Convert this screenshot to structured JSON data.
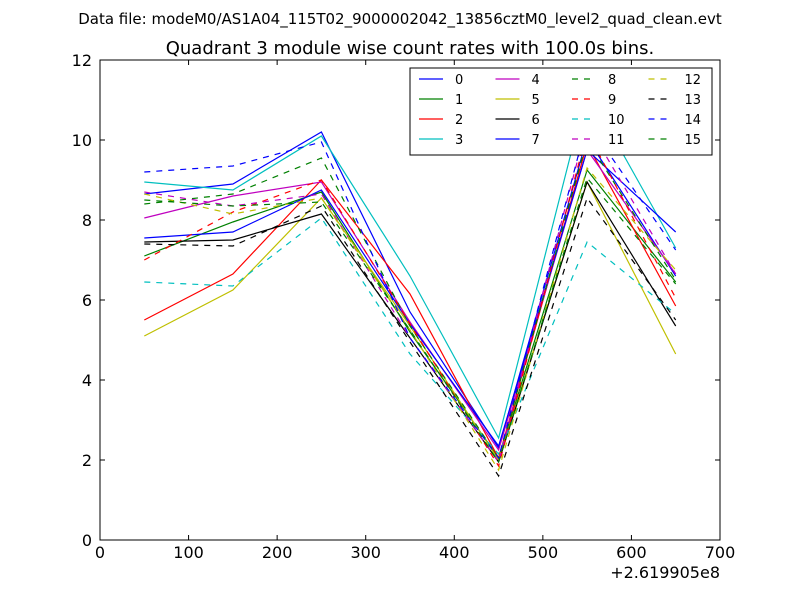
{
  "chart_data": {
    "type": "line",
    "suptitle": "Data file: modeM0/AS1A04_115T02_9000002042_13856cztM0_level2_quad_clean.evt",
    "title": "Quadrant 3 module wise count rates with 100.0s bins.",
    "xlabel": "",
    "ylabel": "",
    "x_offset_label": "+2.619905e8",
    "xlim": [
      0,
      700
    ],
    "ylim": [
      0,
      12
    ],
    "xticks": [
      0,
      100,
      200,
      300,
      400,
      500,
      600,
      700
    ],
    "yticks": [
      0,
      2,
      4,
      6,
      8,
      10,
      12
    ],
    "grid": false,
    "legend_position": "top-right",
    "legend_columns": 4,
    "x": [
      50,
      150,
      250,
      350,
      450,
      550,
      650
    ],
    "series": [
      {
        "name": "0",
        "color": "#0000ff",
        "style": "solid",
        "values": [
          8.65,
          8.9,
          10.2,
          5.7,
          2.3,
          10.05,
          6.6
        ]
      },
      {
        "name": "1",
        "color": "#008000",
        "style": "solid",
        "values": [
          7.1,
          7.95,
          8.7,
          5.2,
          2.05,
          9.25,
          6.45
        ]
      },
      {
        "name": "2",
        "color": "#ff0000",
        "style": "solid",
        "values": [
          5.5,
          6.65,
          9.0,
          6.15,
          2.05,
          9.9,
          5.85
        ]
      },
      {
        "name": "3",
        "color": "#00bfbf",
        "style": "solid",
        "values": [
          8.95,
          8.75,
          10.1,
          6.6,
          2.55,
          11.25,
          7.3
        ]
      },
      {
        "name": "4",
        "color": "#bf00bf",
        "style": "solid",
        "values": [
          8.05,
          8.6,
          8.95,
          5.45,
          2.25,
          9.75,
          6.65
        ]
      },
      {
        "name": "5",
        "color": "#bfbf00",
        "style": "solid",
        "values": [
          5.1,
          6.25,
          8.55,
          5.35,
          2.0,
          8.95,
          4.65
        ]
      },
      {
        "name": "6",
        "color": "#000000",
        "style": "solid",
        "values": [
          7.45,
          7.5,
          8.15,
          5.05,
          1.95,
          8.95,
          5.35
        ]
      },
      {
        "name": "7",
        "color": "#0000ff",
        "style": "solid",
        "values": [
          7.55,
          7.7,
          8.75,
          5.4,
          2.35,
          9.75,
          7.7
        ]
      },
      {
        "name": "8",
        "color": "#008000",
        "style": "dashed",
        "values": [
          8.4,
          8.65,
          9.55,
          5.35,
          2.05,
          10.0,
          6.5
        ]
      },
      {
        "name": "9",
        "color": "#ff0000",
        "style": "dashed",
        "values": [
          7.0,
          8.2,
          9.0,
          5.4,
          1.85,
          10.2,
          6.05
        ]
      },
      {
        "name": "10",
        "color": "#00bfbf",
        "style": "dashed",
        "values": [
          6.45,
          6.35,
          8.05,
          4.65,
          2.15,
          7.45,
          5.65
        ]
      },
      {
        "name": "11",
        "color": "#bf00bf",
        "style": "dashed",
        "values": [
          8.7,
          8.35,
          8.65,
          5.05,
          1.95,
          10.4,
          6.65
        ]
      },
      {
        "name": "12",
        "color": "#bfbf00",
        "style": "dashed",
        "values": [
          8.65,
          8.15,
          8.55,
          5.25,
          1.75,
          9.3,
          6.75
        ]
      },
      {
        "name": "13",
        "color": "#000000",
        "style": "dashed",
        "values": [
          7.4,
          7.35,
          8.35,
          4.95,
          1.6,
          8.55,
          5.5
        ]
      },
      {
        "name": "14",
        "color": "#0000ff",
        "style": "dashed",
        "values": [
          9.2,
          9.35,
          9.95,
          5.05,
          2.05,
          10.45,
          7.25
        ]
      },
      {
        "name": "15",
        "color": "#008000",
        "style": "dashed",
        "values": [
          8.5,
          8.35,
          8.45,
          5.25,
          1.95,
          9.05,
          6.4
        ]
      }
    ]
  }
}
